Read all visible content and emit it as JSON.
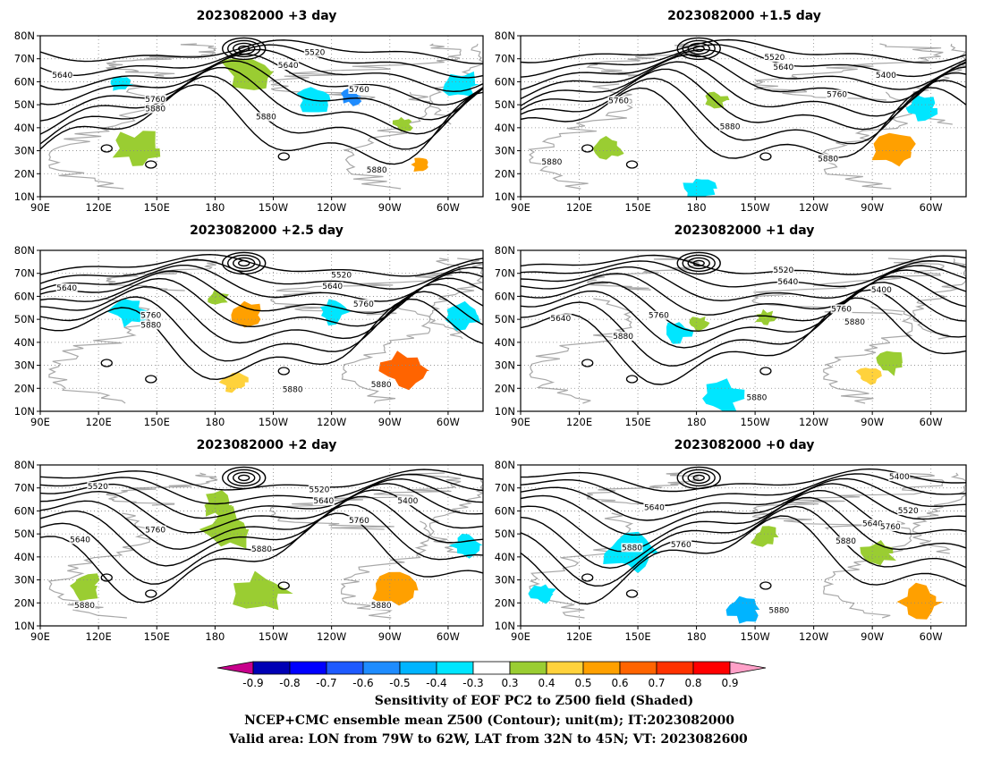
{
  "panels": [
    {
      "title": "2023082000  +3 day",
      "contour_labels": [
        "5520",
        "5640",
        "5640",
        "5760",
        "5760",
        "5880",
        "5880",
        "5880"
      ]
    },
    {
      "title": "2023082000  +1.5 day",
      "contour_labels": [
        "5520",
        "5640",
        "5400",
        "5760",
        "5760",
        "5880",
        "5880",
        "5880"
      ]
    },
    {
      "title": "2023082000  +2.5 day",
      "contour_labels": [
        "5520",
        "5640",
        "5640",
        "5760",
        "5760",
        "5880",
        "5880",
        "5880"
      ]
    },
    {
      "title": "2023082000  +1 day",
      "contour_labels": [
        "5520",
        "5640",
        "5400",
        "5640",
        "5760",
        "5760",
        "5880",
        "5880",
        "5880"
      ]
    },
    {
      "title": "2023082000  +2 day",
      "contour_labels": [
        "5520",
        "5520",
        "5640",
        "5400",
        "5760",
        "5760",
        "5640",
        "5880",
        "5880",
        "5880"
      ]
    },
    {
      "title": "2023082000  +0 day",
      "contour_labels": [
        "5640",
        "5400",
        "5520",
        "5640",
        "5760",
        "5760",
        "5880",
        "5880",
        "5880"
      ]
    }
  ],
  "axes": {
    "lat_ticks": [
      "80N",
      "70N",
      "60N",
      "50N",
      "40N",
      "30N",
      "20N",
      "10N"
    ],
    "lon_ticks": [
      "90E",
      "120E",
      "150E",
      "180",
      "150W",
      "120W",
      "90W",
      "60W"
    ]
  },
  "colorbar": {
    "labels": [
      "-0.9",
      "-0.8",
      "-0.7",
      "-0.6",
      "-0.5",
      "-0.4",
      "-0.3",
      "0.3",
      "0.4",
      "0.5",
      "0.6",
      "0.7",
      "0.8",
      "0.9"
    ],
    "colors": [
      "#0000b4",
      "#0000ff",
      "#1e5aff",
      "#1e8cff",
      "#00b4ff",
      "#00e6ff",
      "#ffffff",
      "#9acd32",
      "#ffd23c",
      "#ffa000",
      "#ff6400",
      "#ff3200",
      "#ff0000"
    ],
    "low_arrow_color": "#c8008c",
    "high_arrow_color": "#ffa0c8"
  },
  "caption": {
    "line1": "Sensitivity of EOF PC2 to Z500 field (Shaded)",
    "line2": "NCEP+CMC ensemble mean Z500 (Contour); unit(m); IT:2023082000",
    "line3": "Valid area: LON from 79W to 62W, LAT from 32N to 45N; VT: 2023082600"
  }
}
